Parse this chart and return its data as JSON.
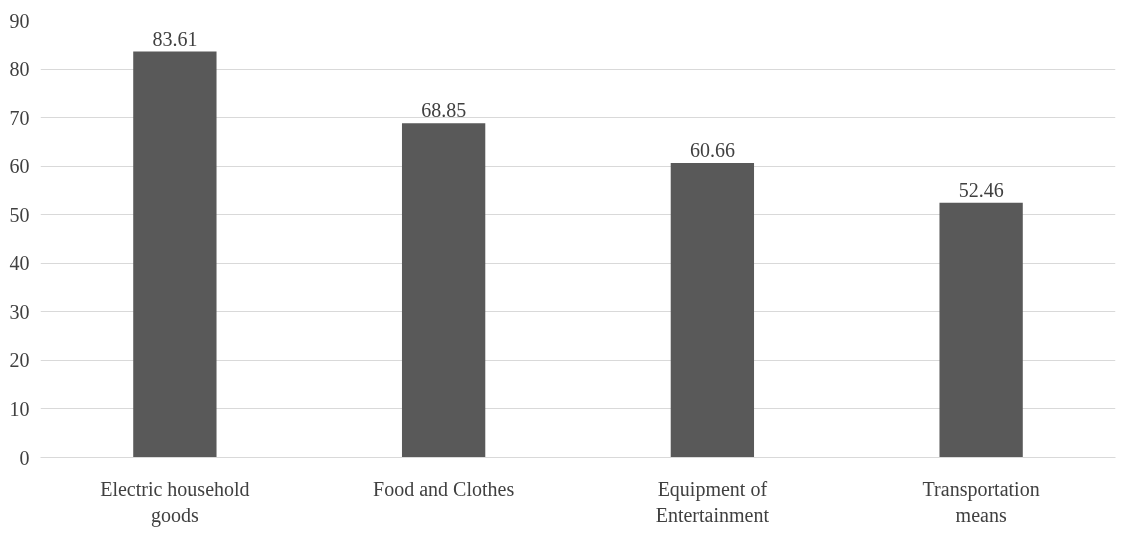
{
  "chart_data": {
    "type": "bar",
    "categories": [
      "Electric household goods",
      "Food and Clothes",
      "Equipment of Entertainment",
      "Transportation means"
    ],
    "values": [
      83.61,
      68.85,
      60.66,
      52.46
    ],
    "color": "#595959",
    "ylim": [
      0,
      90
    ],
    "yticks": [
      0,
      10,
      20,
      30,
      40,
      50,
      60,
      70,
      80,
      90
    ],
    "grid": "y",
    "data_labels": true
  }
}
